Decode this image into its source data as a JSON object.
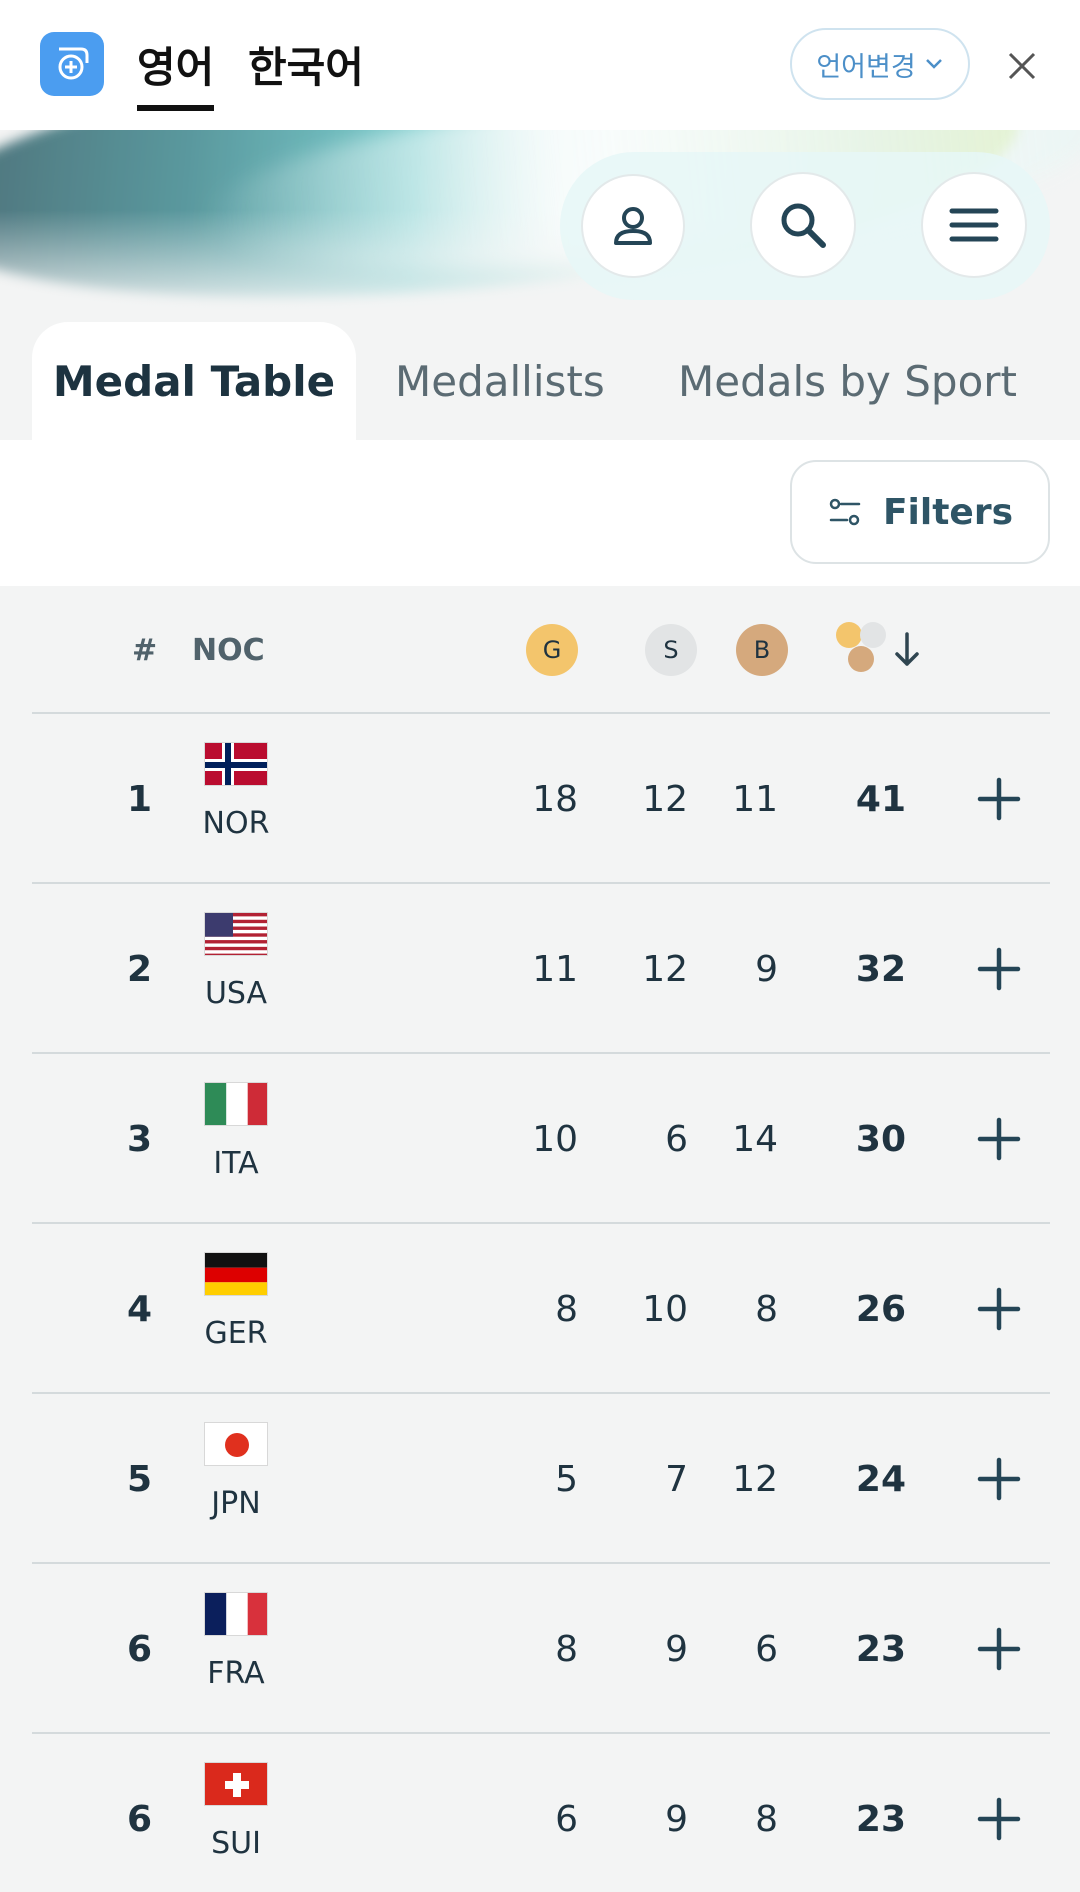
{
  "translate_bar": {
    "tab_english": "영어",
    "tab_korean": "한국어",
    "change_language": "언어변경"
  },
  "tabs": [
    {
      "label": "Medal Table",
      "active": true
    },
    {
      "label": "Medallists",
      "active": false
    },
    {
      "label": "Medals by Sport",
      "active": false
    }
  ],
  "filters_label": "Filters",
  "table": {
    "header": {
      "rank": "#",
      "noc": "NOC",
      "gold": "G",
      "silver": "S",
      "bronze": "B"
    },
    "rows": [
      {
        "rank": "1",
        "noc": "NOR",
        "flag": "norway",
        "gold": "18",
        "silver": "12",
        "bronze": "11",
        "total": "41"
      },
      {
        "rank": "2",
        "noc": "USA",
        "flag": "usa",
        "gold": "11",
        "silver": "12",
        "bronze": "9",
        "total": "32"
      },
      {
        "rank": "3",
        "noc": "ITA",
        "flag": "italy",
        "gold": "10",
        "silver": "6",
        "bronze": "14",
        "total": "30"
      },
      {
        "rank": "4",
        "noc": "GER",
        "flag": "germany",
        "gold": "8",
        "silver": "10",
        "bronze": "8",
        "total": "26"
      },
      {
        "rank": "5",
        "noc": "JPN",
        "flag": "japan",
        "gold": "5",
        "silver": "7",
        "bronze": "12",
        "total": "24"
      },
      {
        "rank": "6",
        "noc": "FRA",
        "flag": "france",
        "gold": "8",
        "silver": "9",
        "bronze": "6",
        "total": "23"
      },
      {
        "rank": "6",
        "noc": "SUI",
        "flag": "switzerland",
        "gold": "6",
        "silver": "9",
        "bronze": "8",
        "total": "23"
      }
    ]
  },
  "colors": {
    "gold": "#f3c56c",
    "silver": "#e2e4e5",
    "bronze": "#d5a97d",
    "text_dark": "#1f3340",
    "accent_blue": "#4b9df0"
  }
}
